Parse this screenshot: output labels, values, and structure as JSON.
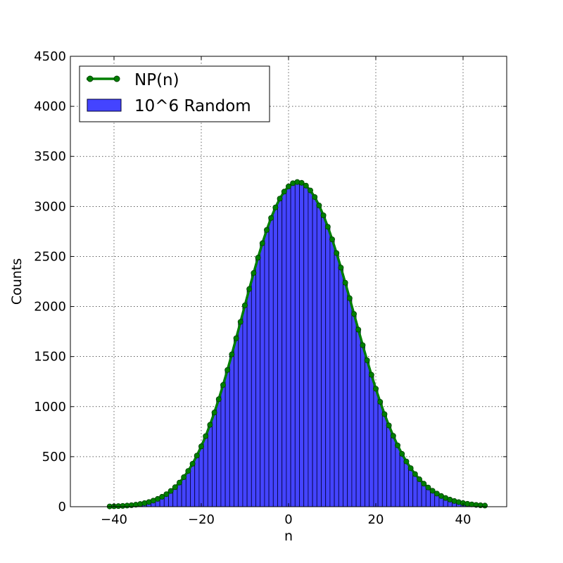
{
  "chart_data": {
    "type": "bar",
    "title": "",
    "xlabel": "n",
    "ylabel": "Counts",
    "xlim": [
      -50,
      50
    ],
    "ylim": [
      0,
      4500
    ],
    "x_ticks": [
      -40,
      -20,
      0,
      20,
      40
    ],
    "y_ticks": [
      0,
      500,
      1000,
      1500,
      2000,
      2500,
      3000,
      3500,
      4000,
      4500
    ],
    "grid": true,
    "legend_position": "top-left",
    "series": [
      {
        "name": "NP(n)",
        "kind": "line",
        "color": "#007f00",
        "marker": "circle",
        "x": [
          -41,
          -40,
          -39,
          -38,
          -37,
          -36,
          -35,
          -34,
          -33,
          -32,
          -31,
          -30,
          -29,
          -28,
          -27,
          -26,
          -25,
          -24,
          -23,
          -22,
          -21,
          -20,
          -19,
          -18,
          -17,
          -16,
          -15,
          -14,
          -13,
          -12,
          -11,
          -10,
          -9,
          -8,
          -7,
          -6,
          -5,
          -4,
          -3,
          -2,
          -1,
          0,
          1,
          2,
          3,
          4,
          5,
          6,
          7,
          8,
          9,
          10,
          11,
          12,
          13,
          14,
          15,
          16,
          17,
          18,
          19,
          20,
          21,
          22,
          23,
          24,
          25,
          26,
          27,
          28,
          29,
          30,
          31,
          32,
          33,
          34,
          35,
          36,
          37,
          38,
          39,
          40,
          41,
          42,
          43,
          44,
          45
        ],
        "y": [
          3,
          4,
          6,
          8,
          11,
          15,
          20,
          27,
          36,
          47,
          61,
          78,
          99,
          125,
          157,
          195,
          241,
          295,
          357,
          429,
          511,
          603,
          705,
          818,
          941,
          1074,
          1216,
          1366,
          1522,
          1683,
          1847,
          2012,
          2175,
          2335,
          2488,
          2632,
          2765,
          2885,
          2990,
          3078,
          3148,
          3200,
          3232,
          3244,
          3236,
          3208,
          3160,
          3094,
          3010,
          2911,
          2797,
          2671,
          2534,
          2389,
          2238,
          2083,
          1926,
          1769,
          1614,
          1463,
          1318,
          1179,
          1048,
          925,
          812,
          708,
          613,
          528,
          452,
          385,
          326,
          274,
          230,
          192,
          159,
          131,
          107,
          87,
          71,
          57,
          46,
          36,
          29,
          23,
          18,
          14,
          11
        ]
      },
      {
        "name": "10^6 Random",
        "kind": "hist",
        "color": "#4444ff",
        "x": [
          -41,
          -40,
          -39,
          -38,
          -37,
          -36,
          -35,
          -34,
          -33,
          -32,
          -31,
          -30,
          -29,
          -28,
          -27,
          -26,
          -25,
          -24,
          -23,
          -22,
          -21,
          -20,
          -19,
          -18,
          -17,
          -16,
          -15,
          -14,
          -13,
          -12,
          -11,
          -10,
          -9,
          -8,
          -7,
          -6,
          -5,
          -4,
          -3,
          -2,
          -1,
          0,
          1,
          2,
          3,
          4,
          5,
          6,
          7,
          8,
          9,
          10,
          11,
          12,
          13,
          14,
          15,
          16,
          17,
          18,
          19,
          20,
          21,
          22,
          23,
          24,
          25,
          26,
          27,
          28,
          29,
          30,
          31,
          32,
          33,
          34,
          35,
          36,
          37,
          38,
          39,
          40,
          41,
          42,
          43,
          44,
          45
        ],
        "y": [
          3,
          4,
          6,
          8,
          11,
          15,
          20,
          27,
          36,
          47,
          61,
          78,
          99,
          125,
          157,
          195,
          241,
          295,
          357,
          429,
          511,
          603,
          705,
          818,
          941,
          1074,
          1216,
          1366,
          1522,
          1683,
          1847,
          2012,
          2175,
          2335,
          2488,
          2632,
          2765,
          2885,
          2990,
          3078,
          3148,
          3200,
          3232,
          3244,
          3236,
          3208,
          3160,
          3094,
          3010,
          2911,
          2797,
          2671,
          2534,
          2389,
          2238,
          2083,
          1926,
          1769,
          1614,
          1463,
          1318,
          1179,
          1048,
          925,
          812,
          708,
          613,
          528,
          452,
          385,
          326,
          274,
          230,
          192,
          159,
          131,
          107,
          87,
          71,
          57,
          46,
          36,
          29,
          23,
          18,
          14,
          11
        ]
      }
    ]
  }
}
